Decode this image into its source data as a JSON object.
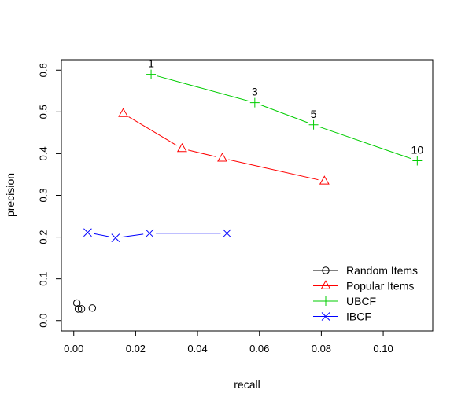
{
  "chart_data": {
    "type": "line",
    "xlabel": "recall",
    "ylabel": "precision",
    "xlim": [
      -0.004,
      0.116
    ],
    "ylim": [
      -0.025,
      0.625
    ],
    "xticks": [
      0.0,
      0.02,
      0.04,
      0.06,
      0.08,
      0.1
    ],
    "xtick_labels": [
      "0.00",
      "0.02",
      "0.04",
      "0.06",
      "0.08",
      "0.10"
    ],
    "yticks": [
      0.0,
      0.1,
      0.2,
      0.3,
      0.4,
      0.5,
      0.6
    ],
    "ytick_labels": [
      "0.0",
      "0.1",
      "0.2",
      "0.3",
      "0.4",
      "0.5",
      "0.6"
    ],
    "grid": false,
    "legend_position": "bottom-right",
    "series": [
      {
        "name": "Random Items",
        "color": "#000000",
        "marker": "circle",
        "connected": false,
        "points": [
          {
            "x": 0.001,
            "y": 0.042
          },
          {
            "x": 0.0015,
            "y": 0.028
          },
          {
            "x": 0.0025,
            "y": 0.028
          },
          {
            "x": 0.006,
            "y": 0.03
          }
        ]
      },
      {
        "name": "Popular Items",
        "color": "#ff0000",
        "marker": "triangle",
        "connected": true,
        "points": [
          {
            "x": 0.016,
            "y": 0.496
          },
          {
            "x": 0.035,
            "y": 0.412
          },
          {
            "x": 0.048,
            "y": 0.389
          },
          {
            "x": 0.081,
            "y": 0.334
          }
        ]
      },
      {
        "name": "UBCF",
        "color": "#00cd00",
        "marker": "plus",
        "connected": true,
        "points": [
          {
            "x": 0.025,
            "y": 0.59,
            "label": "1"
          },
          {
            "x": 0.0585,
            "y": 0.522,
            "label": "3"
          },
          {
            "x": 0.0775,
            "y": 0.469,
            "label": "5"
          },
          {
            "x": 0.111,
            "y": 0.383,
            "label": "10"
          }
        ]
      },
      {
        "name": "IBCF",
        "color": "#0000ff",
        "marker": "x",
        "connected": true,
        "points": [
          {
            "x": 0.0045,
            "y": 0.211
          },
          {
            "x": 0.0135,
            "y": 0.198
          },
          {
            "x": 0.0245,
            "y": 0.209
          },
          {
            "x": 0.0495,
            "y": 0.209
          }
        ]
      }
    ]
  }
}
